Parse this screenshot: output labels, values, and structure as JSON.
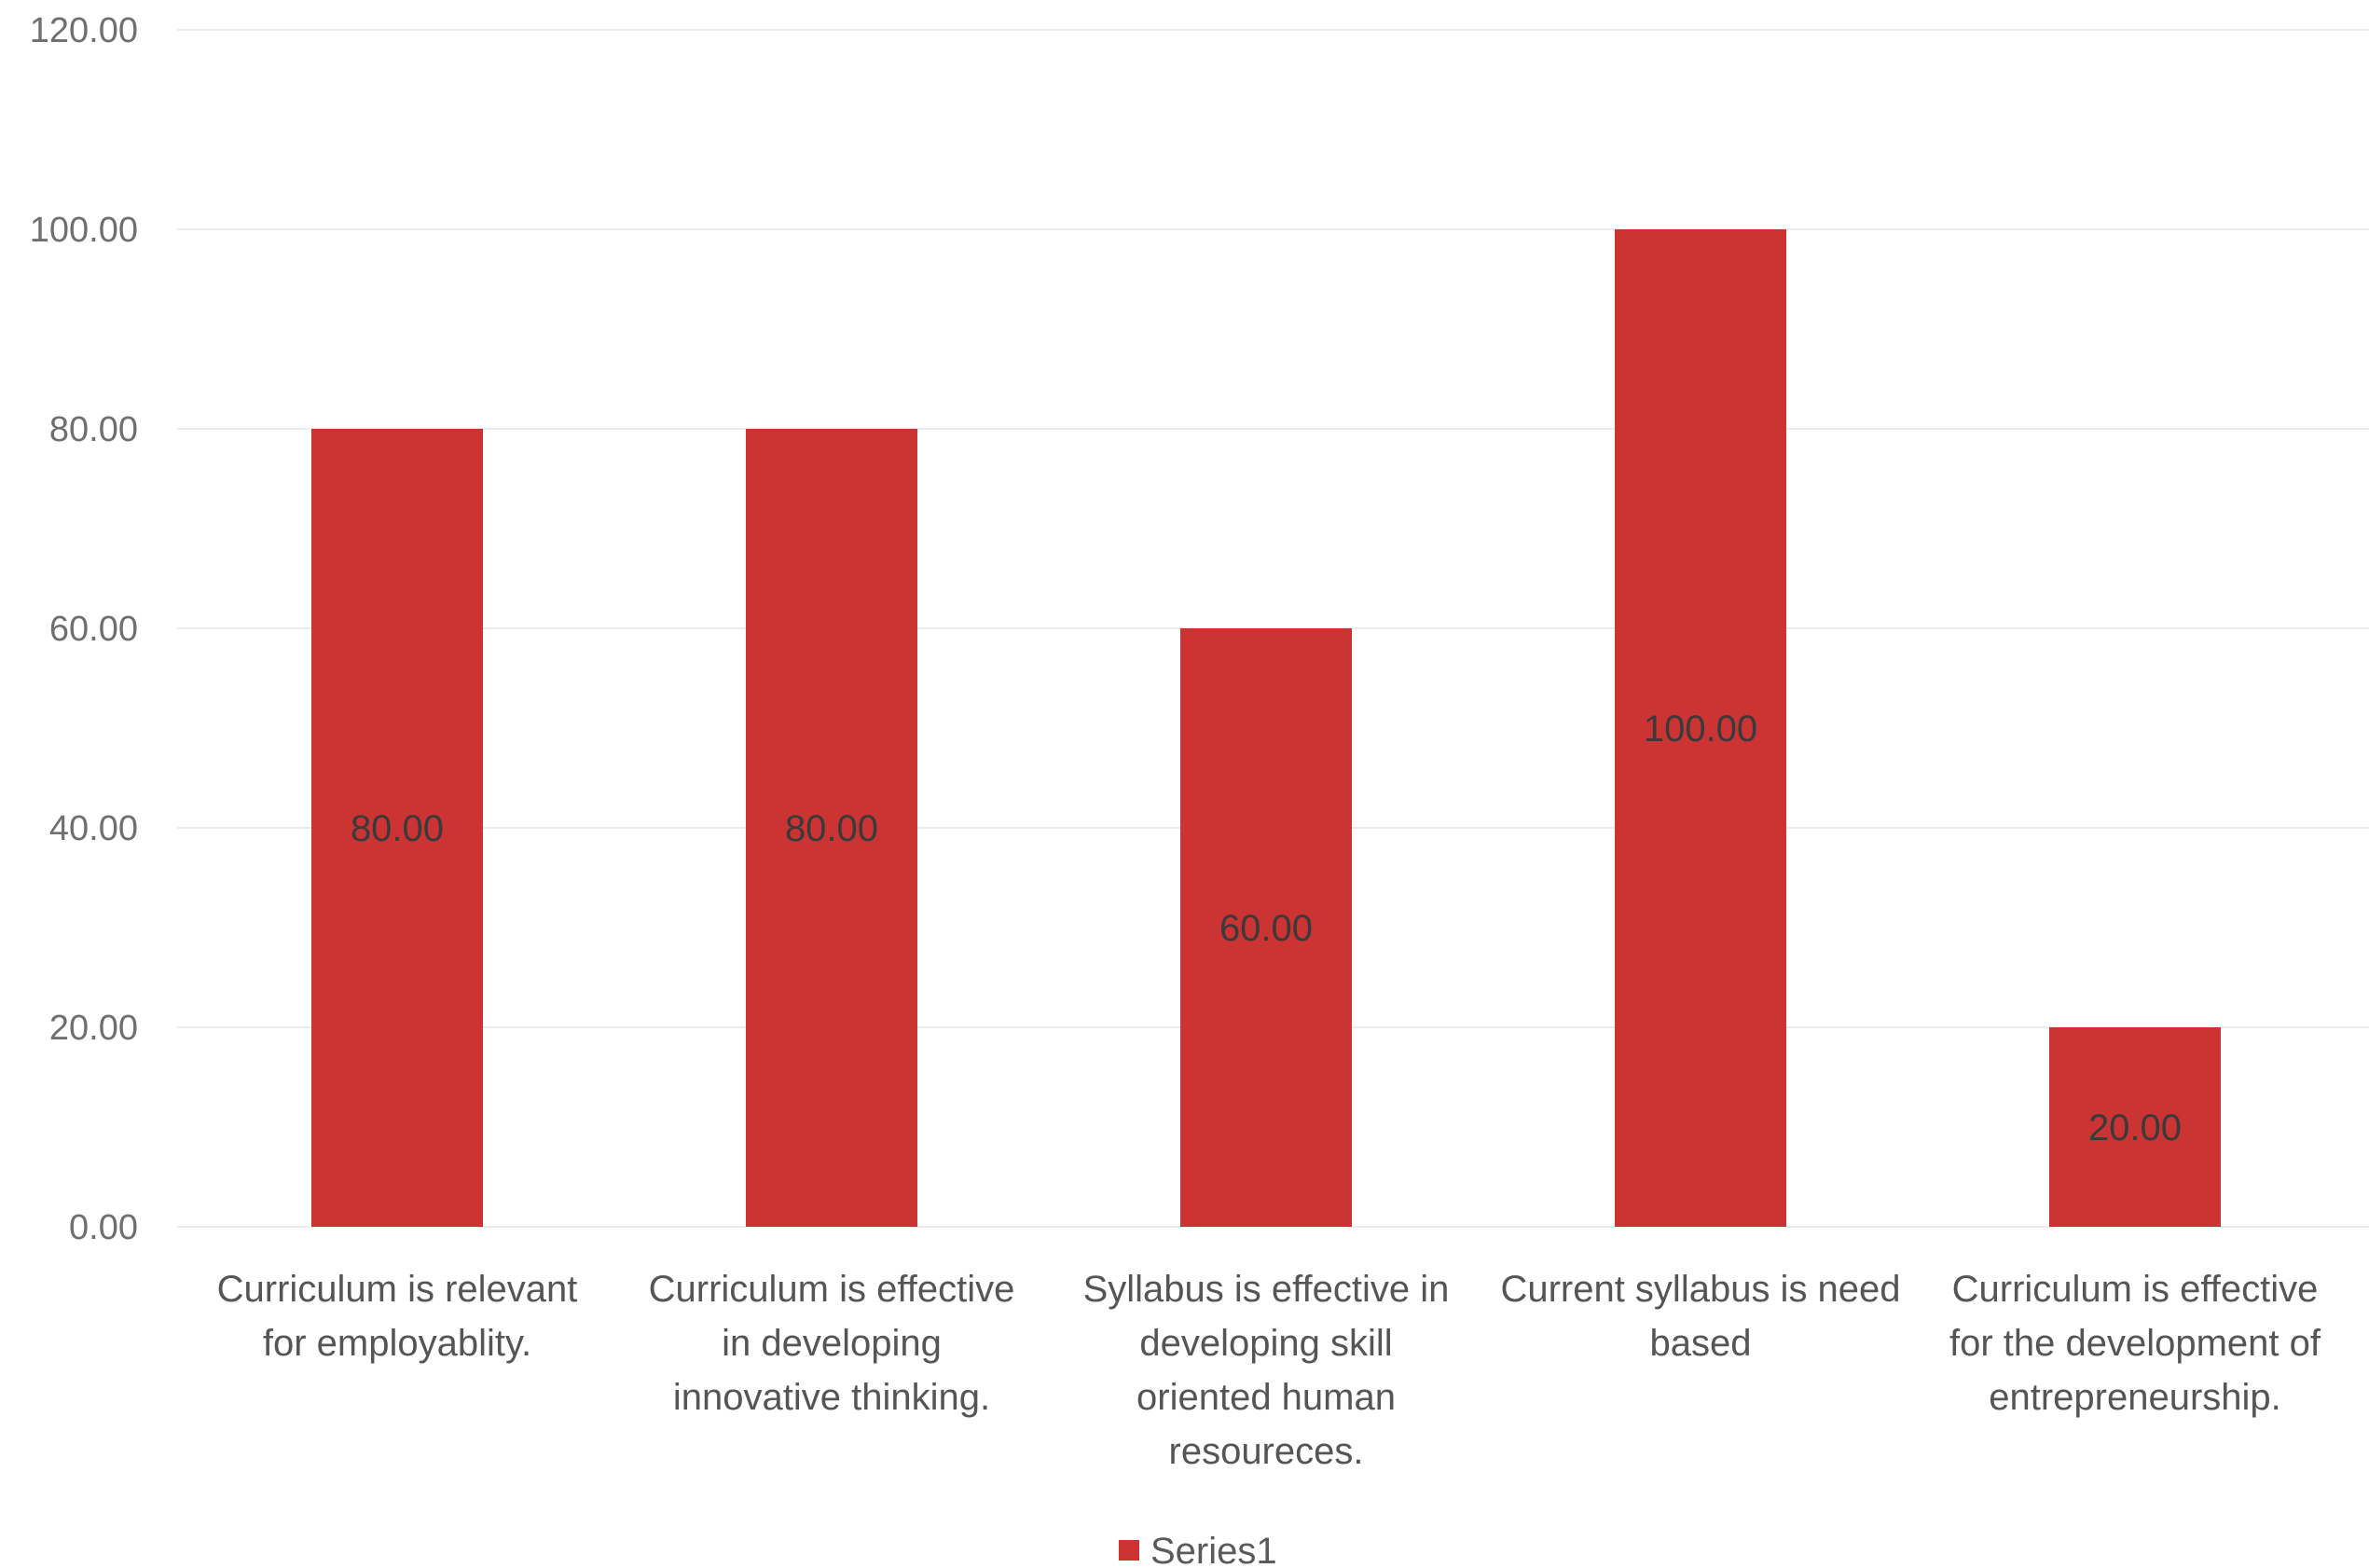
{
  "chart_data": {
    "type": "bar",
    "title": "",
    "xlabel": "",
    "ylabel": "",
    "ylim": [
      0,
      120
    ],
    "yticks": [
      "0.00",
      "20.00",
      "40.00",
      "60.00",
      "80.00",
      "100.00",
      "120.00"
    ],
    "grid": true,
    "legend_position": "bottom",
    "bar_color": "#cc3333",
    "categories": [
      [
        "Curriculum is relevant",
        "for employablity."
      ],
      [
        "Curriculum is effective",
        "in developing",
        "innovative thinking."
      ],
      [
        "Syllabus is effective in",
        "developing skill",
        "oriented human",
        "resoureces."
      ],
      [
        "Current syllabus is need",
        "based"
      ],
      [
        "Curriculum is effective",
        "for the development of",
        "entrepreneurship."
      ]
    ],
    "series": [
      {
        "name": "Series1",
        "values": [
          80,
          80,
          60,
          100,
          20
        ],
        "labels": [
          "80.00",
          "80.00",
          "60.00",
          "100.00",
          "20.00"
        ]
      }
    ]
  }
}
